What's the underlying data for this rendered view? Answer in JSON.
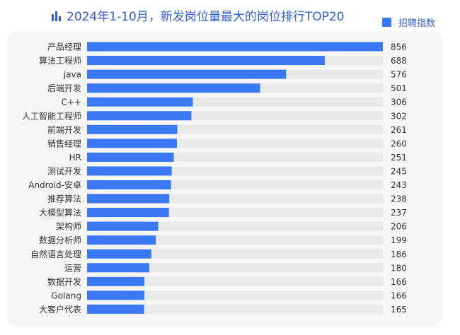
{
  "chart_data": {
    "type": "bar",
    "orientation": "horizontal",
    "title": "2024年1-10月，新发岗位量最大的岗位排行TOP20",
    "legend": {
      "label": "招聘指数",
      "placement": "top-right"
    },
    "color": "#3b78f5",
    "track_color": "#e9e9e9",
    "xlim": [
      0,
      856
    ],
    "grid": false,
    "categories": [
      "产品经理",
      "算法工程师",
      "java",
      "后端开发",
      "C++",
      "人工智能工程师",
      "前端开发",
      "销售经理",
      "HR",
      "测试开发",
      "Android-安卓",
      "推荐算法",
      "大模型算法",
      "架构师",
      "数据分析师",
      "自然语言处理",
      "运营",
      "数据开发",
      "Golang",
      "大客户代表"
    ],
    "values": [
      856,
      688,
      576,
      501,
      306,
      302,
      261,
      260,
      251,
      245,
      243,
      238,
      237,
      206,
      199,
      186,
      180,
      166,
      166,
      165
    ]
  }
}
